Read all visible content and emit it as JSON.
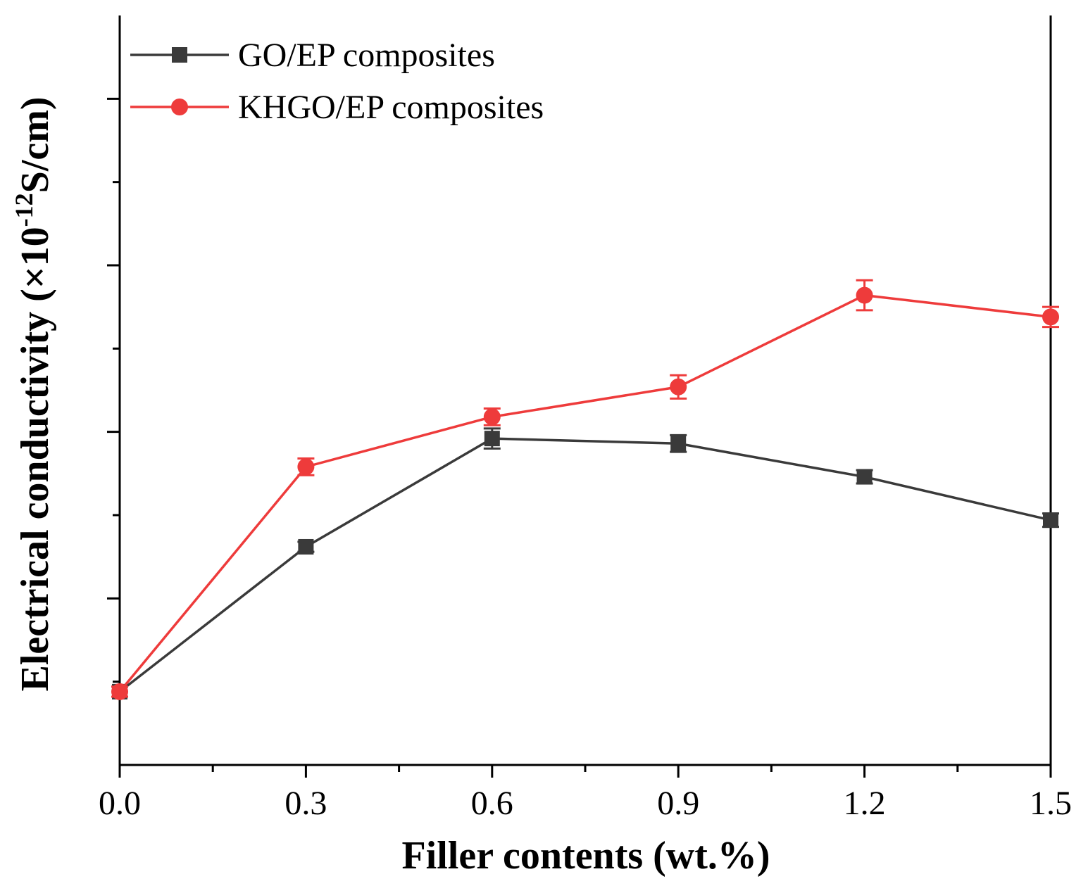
{
  "chart_data": {
    "type": "line",
    "title": "",
    "xlabel": "Filler contents (wt.%)",
    "ylabel_main": "Electrical conductivity (×10",
    "ylabel_exp": "-12",
    "ylabel_unit": "S/cm)",
    "x": [
      0.0,
      0.3,
      0.6,
      0.9,
      1.2,
      1.5
    ],
    "x_tick_labels": [
      "0.0",
      "0.3",
      "0.6",
      "0.9",
      "1.2",
      "1.5"
    ],
    "xlim": [
      0.0,
      1.5
    ],
    "ylim": [
      0,
      4.5
    ],
    "y_major_ticks": [
      1,
      2,
      3,
      4
    ],
    "y_minor_ticks": [
      0.5,
      1.5,
      2.5,
      3.5
    ],
    "y_tick_labels_shown": false,
    "legend_position": "top-left",
    "series": [
      {
        "name": "GO/EP composites",
        "color": "#3a3a3a",
        "marker": "square",
        "values": [
          0.44,
          1.31,
          1.96,
          1.93,
          1.73,
          1.47
        ],
        "errors": [
          0.03,
          0.03,
          0.06,
          0.05,
          0.04,
          0.04
        ]
      },
      {
        "name": "KHGO/EP composites",
        "color": "#ee3b3b",
        "marker": "circle",
        "values": [
          0.44,
          1.79,
          2.09,
          2.27,
          2.82,
          2.69
        ],
        "errors": [
          0.03,
          0.05,
          0.05,
          0.07,
          0.09,
          0.06
        ]
      }
    ]
  }
}
